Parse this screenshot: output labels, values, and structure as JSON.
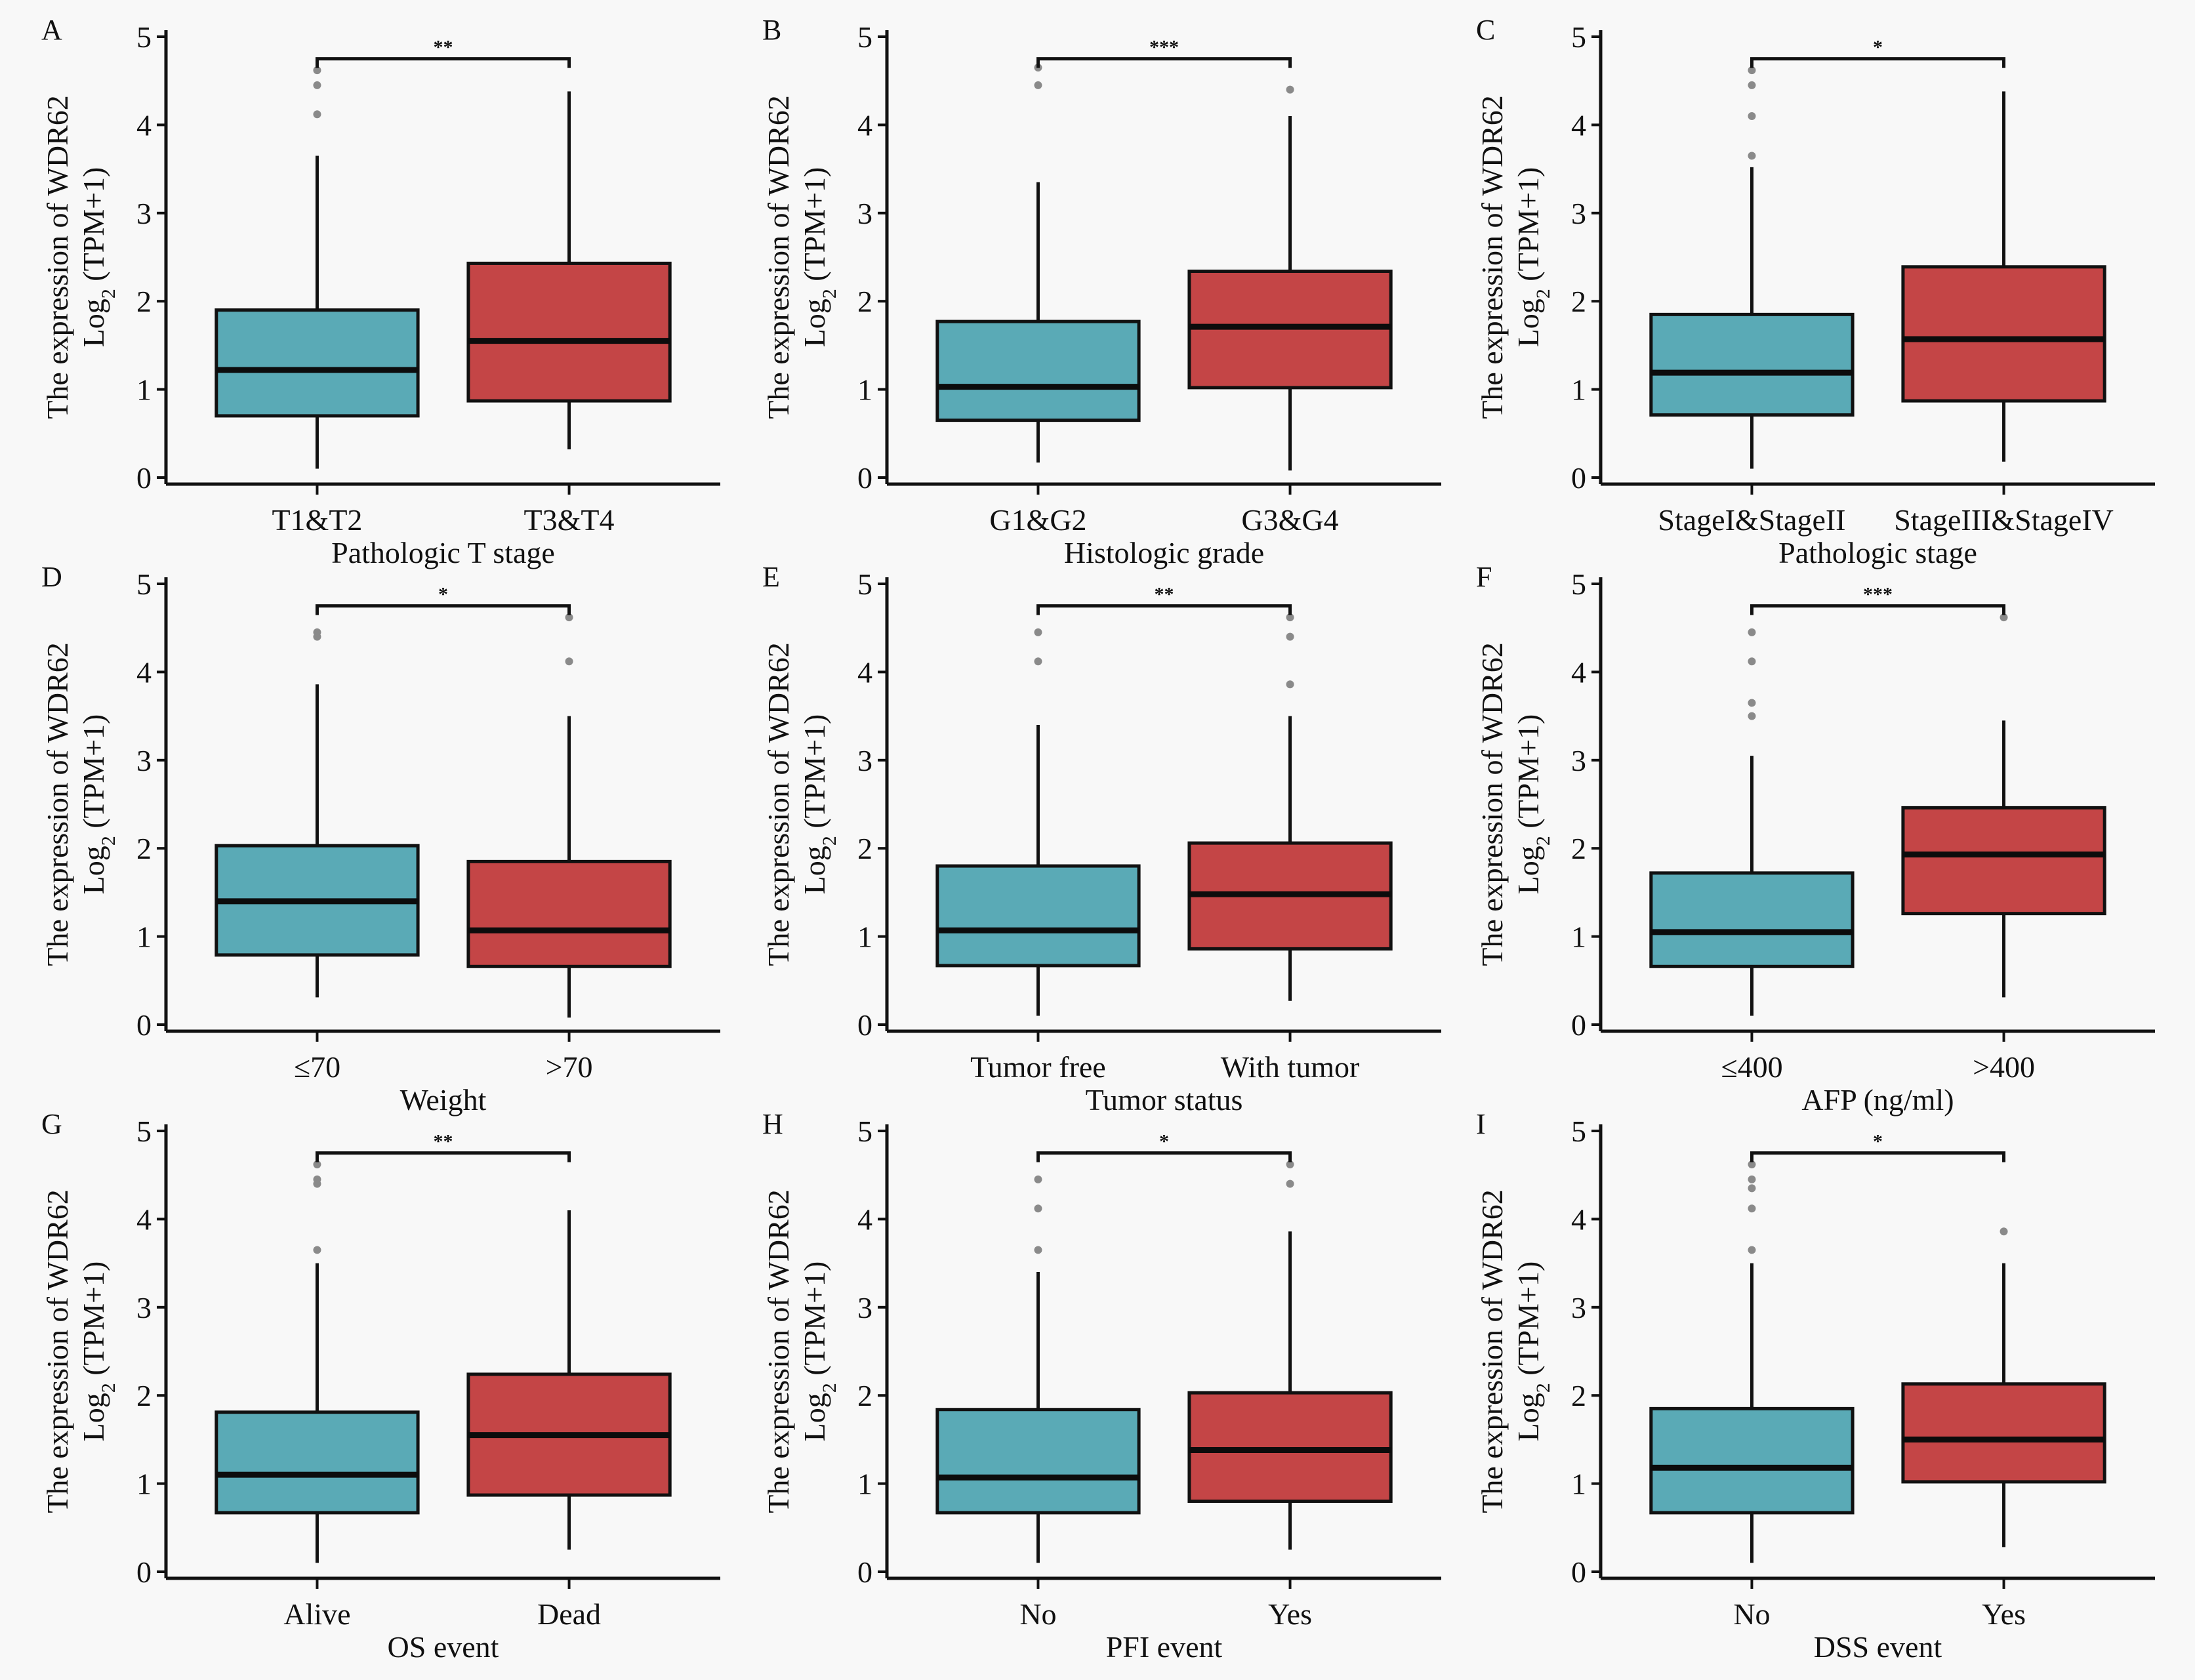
{
  "figure": {
    "y_axis_title_line1": "The expression of WDR62",
    "y_axis_title_line2_prefix": "Log",
    "y_axis_title_line2_sub": "2",
    "y_axis_title_line2_suffix": " (TPM+1)"
  },
  "colors": {
    "group1_fill": "#5AAAB6",
    "group2_fill": "#C44546",
    "background": "#F8F8F8",
    "outlier": "#8A8A8A"
  },
  "chart_data": [
    {
      "panel": "A",
      "type": "box",
      "xlabel": "Pathologic T stage",
      "ylabel": "The expression of WDR62 Log2 (TPM+1)",
      "ylim": [
        0,
        5
      ],
      "yticks": [
        "0",
        "1",
        "2",
        "3",
        "4",
        "5"
      ],
      "significance": "**",
      "groups": [
        {
          "name": "T1&T2",
          "whisker_low": 0.1,
          "q1": 0.7,
          "median": 1.22,
          "q3": 1.9,
          "whisker_high": 3.65,
          "outliers": [
            4.12,
            4.45,
            4.62
          ]
        },
        {
          "name": "T3&T4",
          "whisker_low": 0.32,
          "q1": 0.87,
          "median": 1.55,
          "q3": 2.43,
          "whisker_high": 4.38,
          "outliers": []
        }
      ]
    },
    {
      "panel": "B",
      "type": "box",
      "xlabel": "Histologic grade",
      "ylabel": "The expression of WDR62 Log2 (TPM+1)",
      "ylim": [
        0,
        5
      ],
      "yticks": [
        "0",
        "1",
        "2",
        "3",
        "4",
        "5"
      ],
      "significance": "***",
      "groups": [
        {
          "name": "G1&G2",
          "whisker_low": 0.17,
          "q1": 0.65,
          "median": 1.03,
          "q3": 1.77,
          "whisker_high": 3.35,
          "outliers": [
            4.45,
            4.65
          ]
        },
        {
          "name": "G3&G4",
          "whisker_low": 0.08,
          "q1": 1.02,
          "median": 1.71,
          "q3": 2.34,
          "whisker_high": 4.1,
          "outliers": [
            4.4
          ]
        }
      ]
    },
    {
      "panel": "C",
      "type": "box",
      "xlabel": "Pathologic stage",
      "ylabel": "The expression of WDR62 Log2 (TPM+1)",
      "ylim": [
        0,
        5
      ],
      "yticks": [
        "0",
        "1",
        "2",
        "3",
        "4",
        "5"
      ],
      "significance": "*",
      "groups": [
        {
          "name": "StageI&StageII",
          "whisker_low": 0.1,
          "q1": 0.71,
          "median": 1.19,
          "q3": 1.85,
          "whisker_high": 3.52,
          "outliers": [
            3.65,
            4.1,
            4.45,
            4.62
          ]
        },
        {
          "name": "StageIII&StageIV",
          "whisker_low": 0.18,
          "q1": 0.87,
          "median": 1.57,
          "q3": 2.39,
          "whisker_high": 4.38,
          "outliers": []
        }
      ]
    },
    {
      "panel": "D",
      "type": "box",
      "xlabel": "Weight",
      "ylabel": "The expression of WDR62 Log2 (TPM+1)",
      "ylim": [
        0,
        5
      ],
      "yticks": [
        "0",
        "1",
        "2",
        "3",
        "4",
        "5"
      ],
      "significance": "*",
      "groups": [
        {
          "name": "≤70",
          "whisker_low": 0.31,
          "q1": 0.79,
          "median": 1.4,
          "q3": 2.03,
          "whisker_high": 3.86,
          "outliers": [
            4.4,
            4.45
          ]
        },
        {
          "name": ">70",
          "whisker_low": 0.08,
          "q1": 0.66,
          "median": 1.07,
          "q3": 1.85,
          "whisker_high": 3.5,
          "outliers": [
            4.12,
            4.62
          ]
        }
      ]
    },
    {
      "panel": "E",
      "type": "box",
      "xlabel": "Tumor status",
      "ylabel": "The expression of WDR62 Log2 (TPM+1)",
      "ylim": [
        0,
        5
      ],
      "yticks": [
        "0",
        "1",
        "2",
        "3",
        "4",
        "5"
      ],
      "significance": "**",
      "groups": [
        {
          "name": "Tumor free",
          "whisker_low": 0.1,
          "q1": 0.67,
          "median": 1.07,
          "q3": 1.8,
          "whisker_high": 3.4,
          "outliers": [
            4.12,
            4.45
          ]
        },
        {
          "name": "With tumor",
          "whisker_low": 0.27,
          "q1": 0.86,
          "median": 1.48,
          "q3": 2.06,
          "whisker_high": 3.5,
          "outliers": [
            3.86,
            4.4,
            4.62
          ]
        }
      ]
    },
    {
      "panel": "F",
      "type": "box",
      "xlabel": "AFP (ng/ml)",
      "ylabel": "The expression of WDR62 Log2 (TPM+1)",
      "ylim": [
        0,
        5
      ],
      "yticks": [
        "0",
        "1",
        "2",
        "3",
        "4",
        "5"
      ],
      "significance": "***",
      "groups": [
        {
          "name": "≤400",
          "whisker_low": 0.1,
          "q1": 0.66,
          "median": 1.05,
          "q3": 1.72,
          "whisker_high": 3.05,
          "outliers": [
            3.5,
            3.65,
            4.12,
            4.45
          ]
        },
        {
          "name": ">400",
          "whisker_low": 0.31,
          "q1": 1.26,
          "median": 1.93,
          "q3": 2.46,
          "whisker_high": 3.45,
          "outliers": [
            4.62
          ]
        }
      ]
    },
    {
      "panel": "G",
      "type": "box",
      "xlabel": "OS event",
      "ylabel": "The expression of WDR62 Log2 (TPM+1)",
      "ylim": [
        0,
        5
      ],
      "yticks": [
        "0",
        "1",
        "2",
        "3",
        "4",
        "5"
      ],
      "significance": "**",
      "groups": [
        {
          "name": "Alive",
          "whisker_low": 0.1,
          "q1": 0.67,
          "median": 1.1,
          "q3": 1.81,
          "whisker_high": 3.5,
          "outliers": [
            3.65,
            4.4,
            4.45,
            4.62
          ]
        },
        {
          "name": "Dead",
          "whisker_low": 0.25,
          "q1": 0.87,
          "median": 1.55,
          "q3": 2.24,
          "whisker_high": 4.1,
          "outliers": []
        }
      ]
    },
    {
      "panel": "H",
      "type": "box",
      "xlabel": "PFI event",
      "ylabel": "The expression of WDR62 Log2 (TPM+1)",
      "ylim": [
        0,
        5
      ],
      "yticks": [
        "0",
        "1",
        "2",
        "3",
        "4",
        "5"
      ],
      "significance": "*",
      "groups": [
        {
          "name": "No",
          "whisker_low": 0.1,
          "q1": 0.67,
          "median": 1.07,
          "q3": 1.84,
          "whisker_high": 3.4,
          "outliers": [
            3.65,
            4.12,
            4.45
          ]
        },
        {
          "name": "Yes",
          "whisker_low": 0.25,
          "q1": 0.8,
          "median": 1.38,
          "q3": 2.03,
          "whisker_high": 3.86,
          "outliers": [
            4.4,
            4.62
          ]
        }
      ]
    },
    {
      "panel": "I",
      "type": "box",
      "xlabel": "DSS event",
      "ylabel": "The expression of WDR62 Log2 (TPM+1)",
      "ylim": [
        0,
        5
      ],
      "yticks": [
        "0",
        "1",
        "2",
        "3",
        "4",
        "5"
      ],
      "significance": "*",
      "groups": [
        {
          "name": "No",
          "whisker_low": 0.1,
          "q1": 0.67,
          "median": 1.18,
          "q3": 1.85,
          "whisker_high": 3.5,
          "outliers": [
            3.65,
            4.12,
            4.35,
            4.45,
            4.62
          ]
        },
        {
          "name": "Yes",
          "whisker_low": 0.28,
          "q1": 1.02,
          "median": 1.5,
          "q3": 2.13,
          "whisker_high": 3.5,
          "outliers": [
            3.86
          ]
        }
      ]
    }
  ]
}
